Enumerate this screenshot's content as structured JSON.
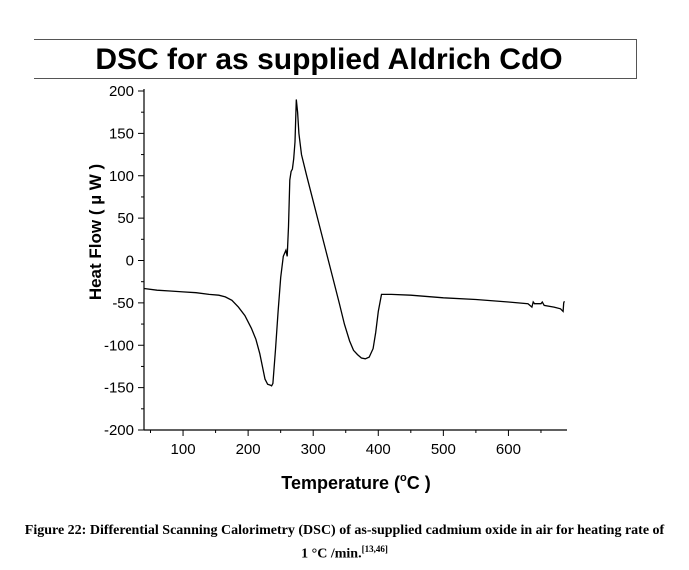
{
  "chart_data": {
    "type": "line",
    "title": "DSC for as supplied Aldrich CdO",
    "xlabel_base": "Temperature (",
    "xlabel_sup": "o",
    "xlabel_unit": "C )",
    "ylabel": "Heat Flow ( µ W )",
    "xlim": [
      40,
      690
    ],
    "ylim": [
      -200,
      200
    ],
    "x_ticks": [
      100,
      200,
      300,
      400,
      500,
      600
    ],
    "y_ticks": [
      200,
      150,
      100,
      50,
      0,
      -50,
      -100,
      -150,
      -200
    ],
    "grid": false,
    "series": [
      {
        "color": "#000000",
        "x": [
          40,
          60,
          80,
          100,
          120,
          140,
          155,
          165,
          175,
          185,
          195,
          205,
          212,
          218,
          222,
          226,
          230,
          234,
          236,
          238,
          242,
          246,
          250,
          254,
          258,
          260,
          262,
          264,
          266,
          268,
          270,
          272,
          274,
          276,
          278,
          282,
          290,
          300,
          310,
          320,
          330,
          340,
          348,
          356,
          362,
          368,
          374,
          380,
          386,
          392,
          396,
          400,
          405,
          420,
          450,
          500,
          550,
          600,
          630,
          636,
          638,
          640,
          650,
          652,
          655,
          670,
          680,
          684,
          685,
          686
        ],
        "y": [
          -33,
          -35,
          -36,
          -37,
          -38,
          -40,
          -41,
          -43,
          -47,
          -55,
          -65,
          -80,
          -93,
          -110,
          -125,
          -140,
          -146,
          -147,
          -148,
          -145,
          -105,
          -60,
          -20,
          5,
          12,
          5,
          40,
          95,
          105,
          108,
          120,
          140,
          190,
          175,
          150,
          125,
          100,
          70,
          40,
          10,
          -20,
          -50,
          -75,
          -95,
          -106,
          -111,
          -115,
          -116,
          -114,
          -104,
          -85,
          -60,
          -40,
          -40,
          -41,
          -44,
          -46,
          -49,
          -51,
          -55,
          -49,
          -51,
          -51,
          -49,
          -53,
          -55,
          -57,
          -60,
          -50,
          -48
        ]
      }
    ]
  },
  "caption": {
    "text": "Figure 22: Differential Scanning Calorimetry (DSC) of as-supplied cadmium oxide in air for heating rate of 1 °C /min.",
    "refs": "[13,46]"
  }
}
